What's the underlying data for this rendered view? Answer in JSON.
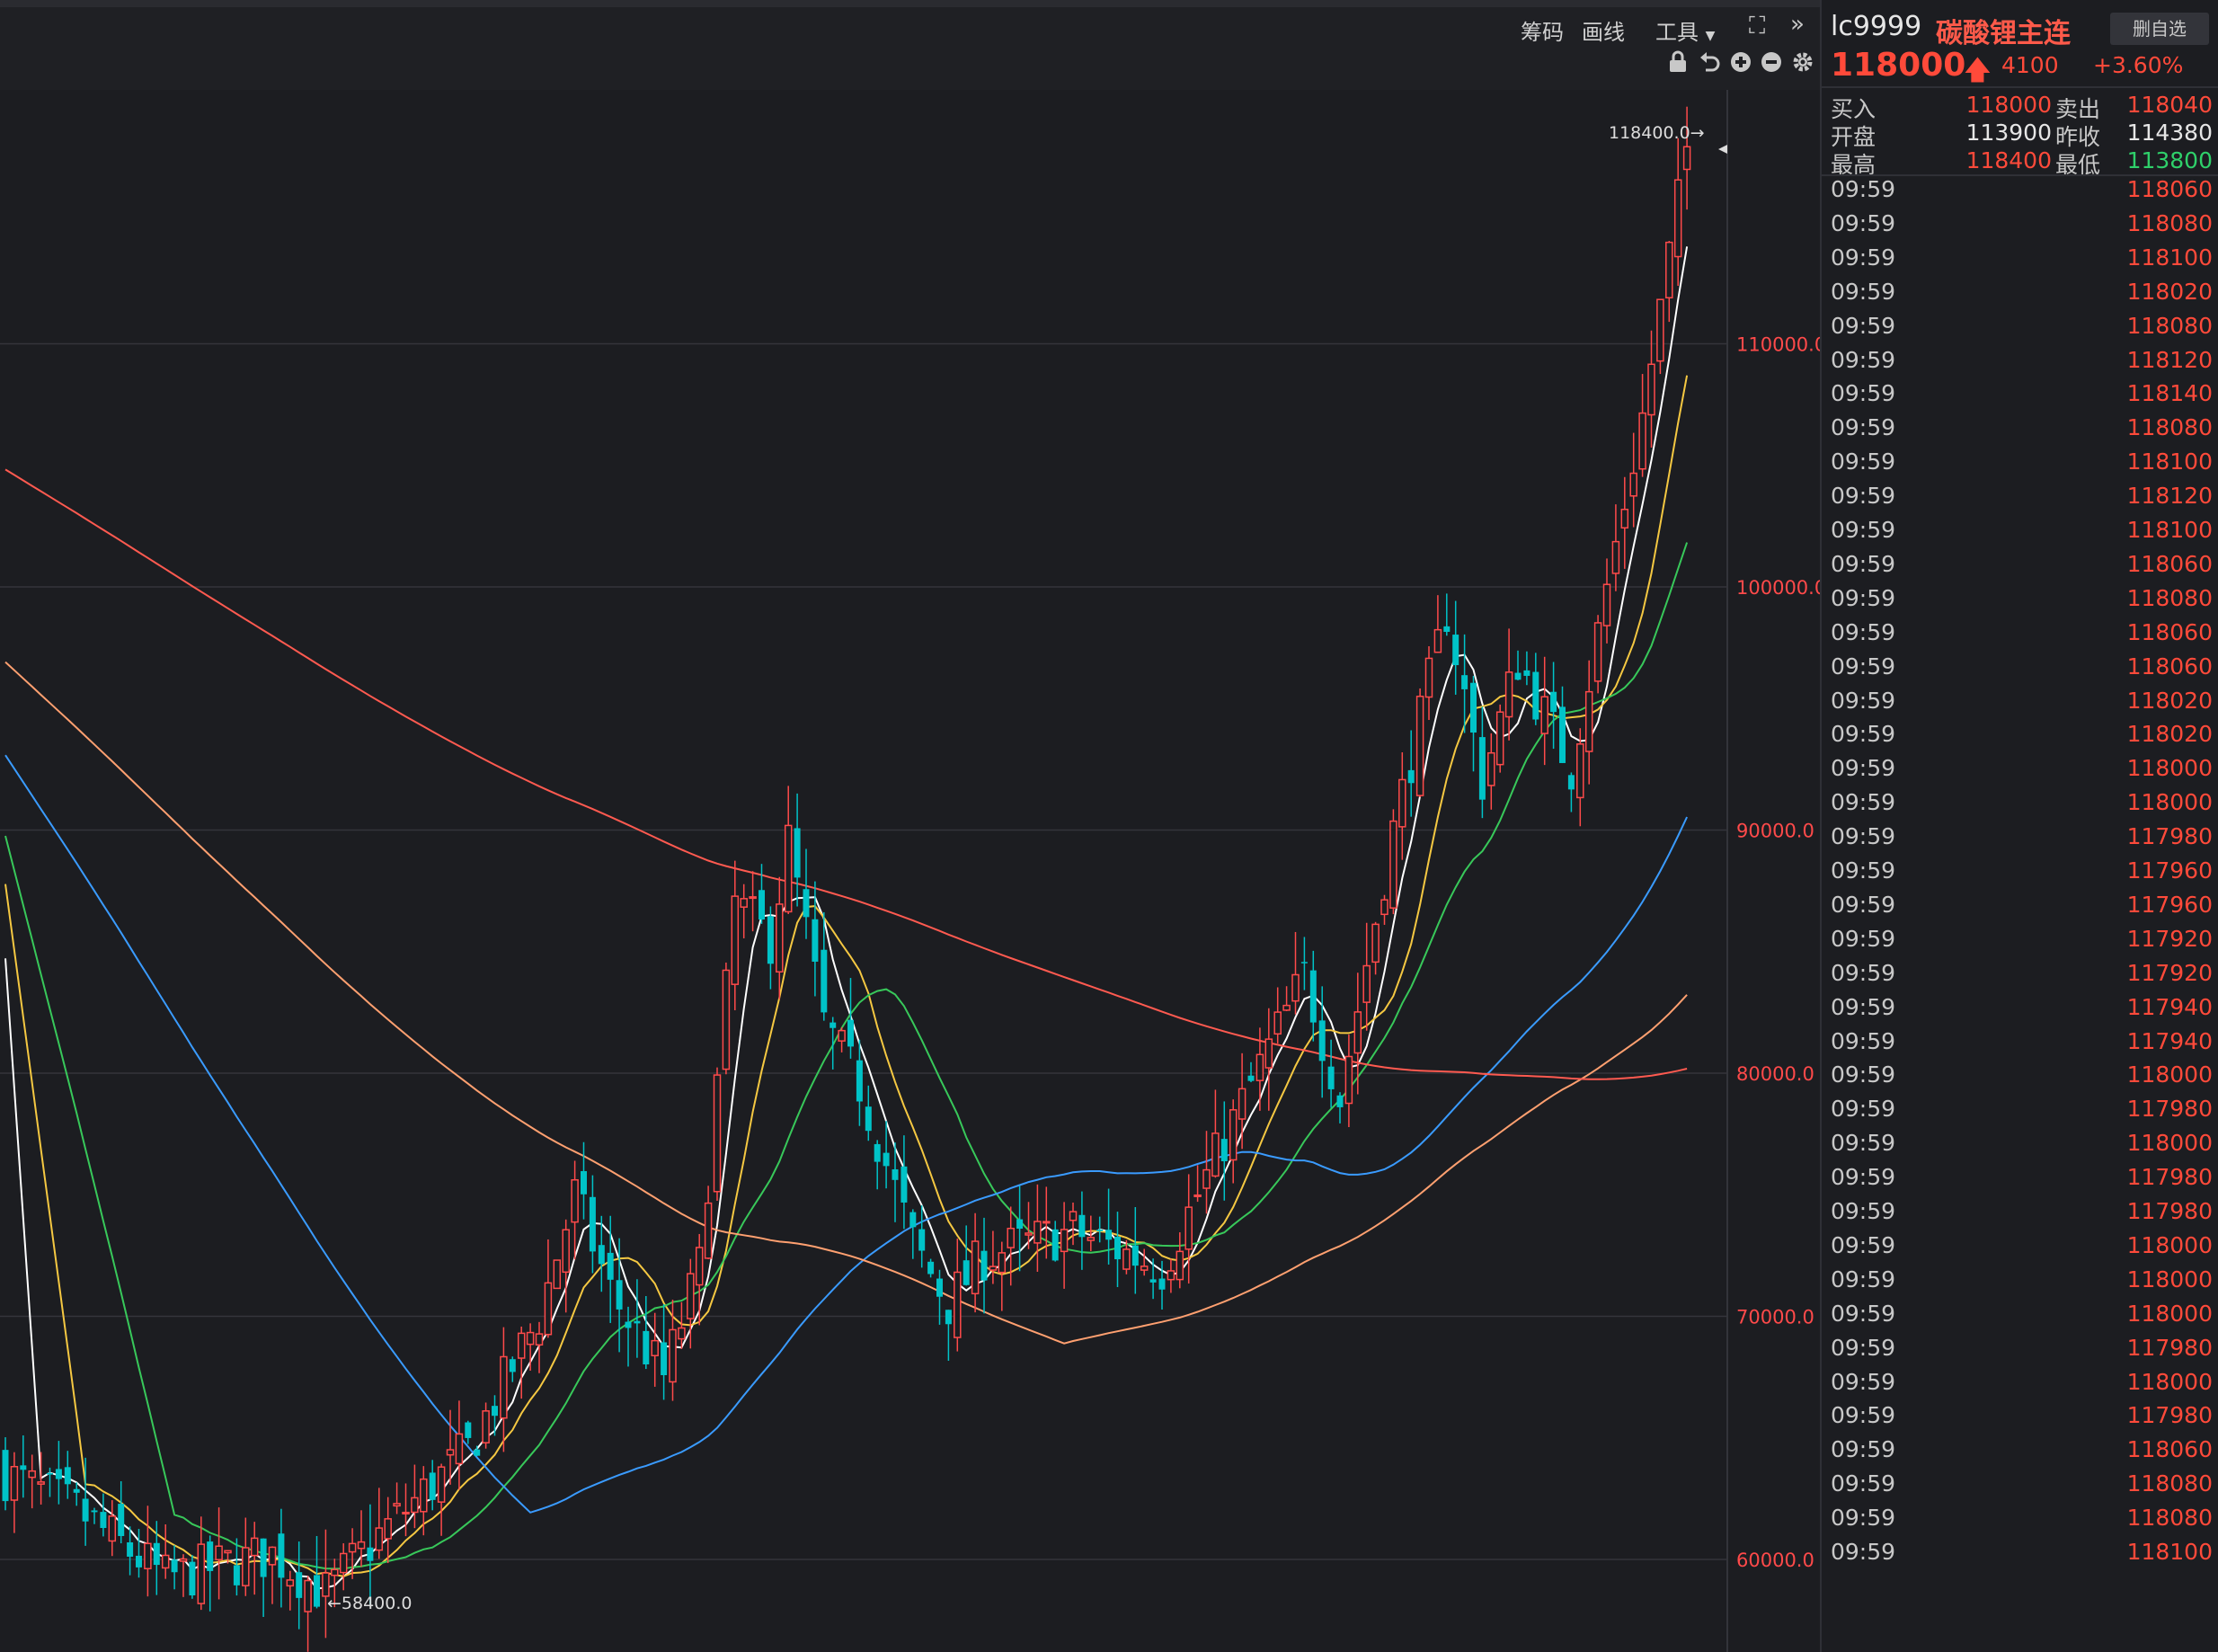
{
  "toolbar": {
    "chips_label": "筹码",
    "draw_label": "画线",
    "tools_label": "工具",
    "icons": [
      "fullscreen-icon",
      "double-chevron-icon",
      "lock-icon",
      "undo-icon",
      "zoom-in-icon",
      "zoom-out-icon",
      "gear-icon"
    ]
  },
  "chart_data": {
    "type": "candlestick",
    "y_ticks": [
      "110000.0",
      "100000.0",
      "90000.0",
      "80000.0",
      "70000.0",
      "60000.0"
    ],
    "high_marker": "118400.0→",
    "low_marker": "←58400.0",
    "colors": {
      "up": "#ff4a4a",
      "down": "#00c3c8",
      "ma5": "#ffffff",
      "ma10": "#f5c842",
      "ma20": "#38c85a",
      "ma60": "#3a9bff",
      "ma120": "#ffa070",
      "ma250": "#ff5a50"
    }
  },
  "sidebar": {
    "code": "lc9999",
    "name": "碳酸锂主连",
    "watch_label": "删自选",
    "price": "118000",
    "change": "4100",
    "pct": "+3.60%",
    "quote": [
      {
        "l1": "买入",
        "v1": "118000",
        "l2": "卖出",
        "v2": "118040",
        "c1": "#ff4a3a",
        "c2": "#ff4a3a"
      },
      {
        "l1": "开盘",
        "v1": "113900",
        "l2": "昨收",
        "v2": "114380",
        "c1": "#e6e6e6",
        "c2": "#e6e6e6"
      },
      {
        "l1": "最高",
        "v1": "118400",
        "l2": "最低",
        "v2": "113800",
        "c1": "#ff4a3a",
        "c2": "#2fd06a"
      }
    ],
    "ticks": [
      {
        "t": "09:59",
        "p": "118060"
      },
      {
        "t": "09:59",
        "p": "118080"
      },
      {
        "t": "09:59",
        "p": "118100"
      },
      {
        "t": "09:59",
        "p": "118020"
      },
      {
        "t": "09:59",
        "p": "118080"
      },
      {
        "t": "09:59",
        "p": "118120"
      },
      {
        "t": "09:59",
        "p": "118140"
      },
      {
        "t": "09:59",
        "p": "118080"
      },
      {
        "t": "09:59",
        "p": "118100"
      },
      {
        "t": "09:59",
        "p": "118120"
      },
      {
        "t": "09:59",
        "p": "118100"
      },
      {
        "t": "09:59",
        "p": "118060"
      },
      {
        "t": "09:59",
        "p": "118080"
      },
      {
        "t": "09:59",
        "p": "118060"
      },
      {
        "t": "09:59",
        "p": "118060"
      },
      {
        "t": "09:59",
        "p": "118020"
      },
      {
        "t": "09:59",
        "p": "118020"
      },
      {
        "t": "09:59",
        "p": "118000"
      },
      {
        "t": "09:59",
        "p": "118000"
      },
      {
        "t": "09:59",
        "p": "117980"
      },
      {
        "t": "09:59",
        "p": "117960"
      },
      {
        "t": "09:59",
        "p": "117960"
      },
      {
        "t": "09:59",
        "p": "117920"
      },
      {
        "t": "09:59",
        "p": "117920"
      },
      {
        "t": "09:59",
        "p": "117940"
      },
      {
        "t": "09:59",
        "p": "117940"
      },
      {
        "t": "09:59",
        "p": "118000"
      },
      {
        "t": "09:59",
        "p": "117980"
      },
      {
        "t": "09:59",
        "p": "118000"
      },
      {
        "t": "09:59",
        "p": "117980"
      },
      {
        "t": "09:59",
        "p": "117980"
      },
      {
        "t": "09:59",
        "p": "118000"
      },
      {
        "t": "09:59",
        "p": "118000"
      },
      {
        "t": "09:59",
        "p": "118000"
      },
      {
        "t": "09:59",
        "p": "117980"
      },
      {
        "t": "09:59",
        "p": "118000"
      },
      {
        "t": "09:59",
        "p": "117980"
      },
      {
        "t": "09:59",
        "p": "118060"
      },
      {
        "t": "09:59",
        "p": "118080"
      },
      {
        "t": "09:59",
        "p": "118080"
      },
      {
        "t": "09:59",
        "p": "118100"
      }
    ]
  }
}
